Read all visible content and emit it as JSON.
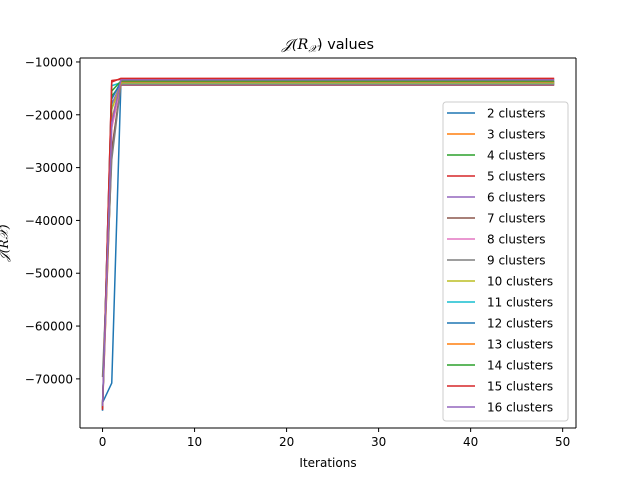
{
  "chart_data": {
    "type": "line",
    "title_parts": [
      "𝒥(",
      "R",
      "𝒳",
      ") values"
    ],
    "xlabel": "Iterations",
    "ylabel": "𝒥(R𝒳)",
    "xlim": [
      -2.45,
      51.45
    ],
    "ylim": [
      -79300,
      -9250
    ],
    "xticks": [
      0,
      10,
      20,
      30,
      40,
      50
    ],
    "yticks": [
      -70000,
      -60000,
      -50000,
      -40000,
      -30000,
      -20000,
      -10000
    ],
    "xtick_labels": [
      "0",
      "10",
      "20",
      "30",
      "40",
      "50"
    ],
    "ytick_labels": [
      "−70000",
      "−60000",
      "−50000",
      "−40000",
      "−30000",
      "−20000",
      "−10000"
    ],
    "iterations": 50,
    "legend_position": "center right",
    "grid": false,
    "series": [
      {
        "name": "2 clusters",
        "color": "#1f77b4",
        "start": [
          -74500,
          -70800
        ],
        "plateau": -13800
      },
      {
        "name": "3 clusters",
        "color": "#ff7f0e",
        "start": [
          -75500,
          -27000
        ],
        "plateau": -14000
      },
      {
        "name": "4 clusters",
        "color": "#2ca02c",
        "start": [
          -75000,
          -16500
        ],
        "plateau": -14200
      },
      {
        "name": "5 clusters",
        "color": "#d62728",
        "start": [
          -75800,
          -13500
        ],
        "plateau": -13300
      },
      {
        "name": "6 clusters",
        "color": "#9467bd",
        "start": [
          -75200,
          -18000
        ],
        "plateau": -14100
      },
      {
        "name": "7 clusters",
        "color": "#8c564b",
        "start": [
          -74800,
          -26500
        ],
        "plateau": -14400
      },
      {
        "name": "8 clusters",
        "color": "#e377c2",
        "start": [
          -75600,
          -22500
        ],
        "plateau": -14300
      },
      {
        "name": "9 clusters",
        "color": "#7f7f7f",
        "start": [
          -69500,
          -28500
        ],
        "plateau": -14200
      },
      {
        "name": "10 clusters",
        "color": "#bcbd22",
        "start": [
          -75300,
          -19000
        ],
        "plateau": -14000
      },
      {
        "name": "11 clusters",
        "color": "#17becf",
        "start": [
          -75100,
          -14500
        ],
        "plateau": -13900
      },
      {
        "name": "12 clusters",
        "color": "#1f77b4",
        "start": [
          -75900,
          -17000
        ],
        "plateau": -13700
      },
      {
        "name": "13 clusters",
        "color": "#ff7f0e",
        "start": [
          -74900,
          -21000
        ],
        "plateau": -13800
      },
      {
        "name": "14 clusters",
        "color": "#2ca02c",
        "start": [
          -75400,
          -15500
        ],
        "plateau": -13600
      },
      {
        "name": "15 clusters",
        "color": "#d62728",
        "start": [
          -75700,
          -13800
        ],
        "plateau": -13100
      },
      {
        "name": "16 clusters",
        "color": "#9467bd",
        "start": [
          -75000,
          -21500
        ],
        "plateau": -13400
      }
    ]
  }
}
